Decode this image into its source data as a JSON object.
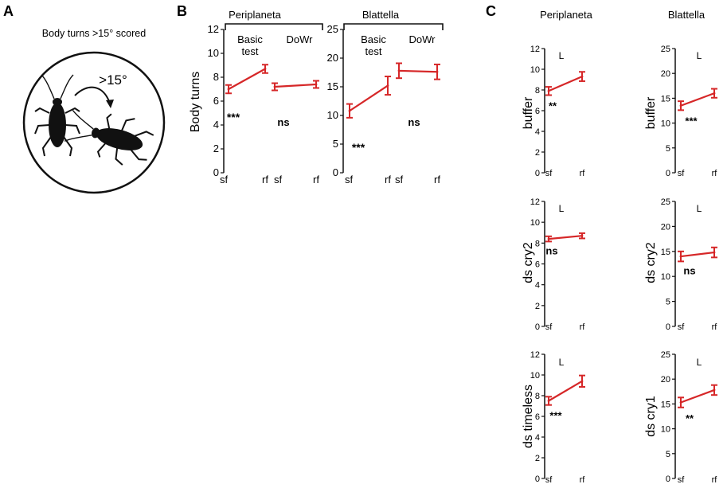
{
  "colors": {
    "series": "#d62728",
    "axis": "#111111"
  },
  "panel_a": {
    "letter": "A",
    "title": "Body turns >15° scored",
    "angle_label": ">15°",
    "icons": [
      "cockroach-icon",
      "cockroach-turned-icon",
      "curved-arrow-icon"
    ]
  },
  "panel_b": {
    "letter": "B",
    "species_left": "Periplaneta",
    "species_right": "Blattella",
    "ylabel": "Body turns",
    "basic_label_line1": "Basic",
    "basic_label_line2": "test",
    "dowr_label": "DoWr"
  },
  "panel_c": {
    "letter": "C",
    "species_left": "Periplaneta",
    "species_right": "Blattella"
  },
  "chart_data": [
    {
      "type": "line",
      "panel": "B",
      "species": "Periplaneta",
      "ylabel": "Body turns",
      "ylim": [
        0,
        12
      ],
      "yticks": [
        "0",
        "2",
        "4",
        "6",
        "8",
        "10",
        "12"
      ],
      "groups": [
        {
          "label": "Basic test",
          "x": [
            "sf",
            "rf"
          ],
          "values": [
            7.0,
            8.7
          ],
          "errors": [
            0.35,
            0.35
          ],
          "significance": "***"
        },
        {
          "label": "DoWr",
          "x": [
            "sf",
            "rf"
          ],
          "values": [
            7.2,
            7.4
          ],
          "errors": [
            0.3,
            0.3
          ],
          "significance": "ns"
        }
      ]
    },
    {
      "type": "line",
      "panel": "B",
      "species": "Blattella",
      "ylabel": "",
      "ylim": [
        0,
        25
      ],
      "yticks": [
        "0",
        "5",
        "10",
        "15",
        "20",
        "25"
      ],
      "groups": [
        {
          "label": "Basic test",
          "x": [
            "sf",
            "rf"
          ],
          "values": [
            10.8,
            15.2
          ],
          "errors": [
            1.2,
            1.6
          ],
          "significance": "***"
        },
        {
          "label": "DoWr",
          "x": [
            "sf",
            "rf"
          ],
          "values": [
            17.8,
            17.6
          ],
          "errors": [
            1.3,
            1.3
          ],
          "significance": "ns"
        }
      ]
    },
    {
      "type": "line",
      "panel": "C",
      "species": "Periplaneta",
      "ylabel": "buffer",
      "letter": "L",
      "ylim": [
        0,
        12
      ],
      "yticks": [
        "0",
        "2",
        "4",
        "6",
        "8",
        "10",
        "12"
      ],
      "x": [
        "sf",
        "rf"
      ],
      "values": [
        7.9,
        9.3
      ],
      "errors": [
        0.4,
        0.45
      ],
      "significance": "**"
    },
    {
      "type": "line",
      "panel": "C",
      "species": "Blattella",
      "ylabel": "buffer",
      "letter": "L",
      "ylim": [
        0,
        25
      ],
      "yticks": [
        "0",
        "5",
        "10",
        "15",
        "20",
        "25"
      ],
      "x": [
        "sf",
        "rf"
      ],
      "values": [
        13.5,
        16.0
      ],
      "errors": [
        0.9,
        0.9
      ],
      "significance": "***"
    },
    {
      "type": "line",
      "panel": "C",
      "species": "Periplaneta",
      "ylabel": "ds cry2",
      "letter": "L",
      "ylim": [
        0,
        12
      ],
      "yticks": [
        "0",
        "2",
        "4",
        "6",
        "8",
        "10",
        "12"
      ],
      "x": [
        "sf",
        "rf"
      ],
      "values": [
        8.4,
        8.7
      ],
      "errors": [
        0.25,
        0.25
      ],
      "significance": "ns"
    },
    {
      "type": "line",
      "panel": "C",
      "species": "Blattella",
      "ylabel": "ds cry2",
      "letter": "L",
      "ylim": [
        0,
        25
      ],
      "yticks": [
        "0",
        "5",
        "10",
        "15",
        "20",
        "25"
      ],
      "x": [
        "sf",
        "rf"
      ],
      "values": [
        14.0,
        14.8
      ],
      "errors": [
        1.0,
        1.0
      ],
      "significance": "ns"
    },
    {
      "type": "line",
      "panel": "C",
      "species": "Periplaneta",
      "ylabel": "ds timeless",
      "letter": "L",
      "ylim": [
        0,
        12
      ],
      "yticks": [
        "0",
        "2",
        "4",
        "6",
        "8",
        "10",
        "12"
      ],
      "x": [
        "sf",
        "rf"
      ],
      "values": [
        7.5,
        9.4
      ],
      "errors": [
        0.4,
        0.55
      ],
      "significance": "***"
    },
    {
      "type": "line",
      "panel": "C",
      "species": "Blattella",
      "ylabel": "ds cry1",
      "letter": "L",
      "ylim": [
        0,
        25
      ],
      "yticks": [
        "0",
        "5",
        "10",
        "15",
        "20",
        "25"
      ],
      "x": [
        "sf",
        "rf"
      ],
      "values": [
        15.3,
        17.8
      ],
      "errors": [
        1.0,
        1.0
      ],
      "significance": "**"
    }
  ]
}
